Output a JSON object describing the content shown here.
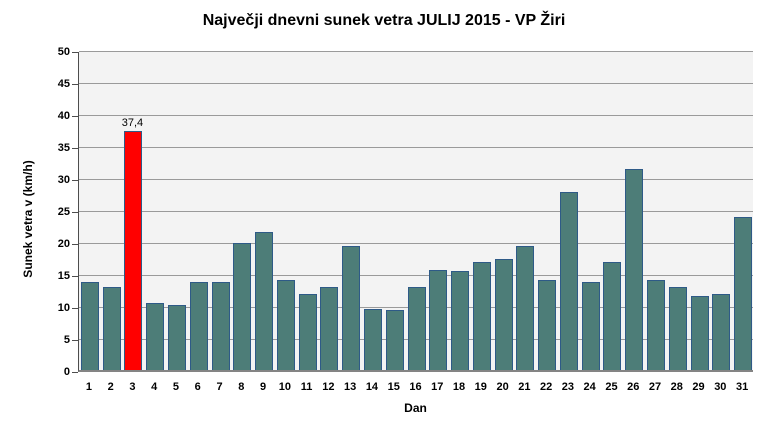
{
  "chart_data": {
    "type": "bar",
    "title": "Največji dnevni sunek vetra JULIJ 2015 - VP Žiri",
    "xlabel": "Dan",
    "ylabel": "Sunek vetra v (km/h)",
    "ylim": [
      0,
      50
    ],
    "yticks": [
      0,
      5,
      10,
      15,
      20,
      25,
      30,
      35,
      40,
      45,
      50
    ],
    "grid": true,
    "legend": false,
    "categories": [
      "1",
      "2",
      "3",
      "4",
      "5",
      "6",
      "7",
      "8",
      "9",
      "10",
      "11",
      "12",
      "13",
      "14",
      "15",
      "16",
      "17",
      "18",
      "19",
      "20",
      "21",
      "22",
      "23",
      "24",
      "25",
      "26",
      "27",
      "28",
      "29",
      "30",
      "31"
    ],
    "values": [
      13.7,
      13.0,
      37.4,
      10.5,
      10.2,
      13.8,
      13.8,
      19.9,
      21.5,
      14.1,
      11.9,
      12.9,
      19.3,
      9.6,
      9.4,
      13.0,
      15.7,
      15.4,
      16.9,
      17.3,
      19.3,
      14.1,
      27.8,
      13.7,
      16.9,
      31.4,
      14.1,
      12.9,
      11.5,
      11.9,
      23.9
    ],
    "highlight": {
      "category": "3",
      "index": 2,
      "value": 37.4,
      "data_label": "37,4",
      "color": "#FF0000"
    },
    "colors": {
      "bar_fill": "#4D7D78",
      "bar_border": "#2E5A87",
      "highlight_fill": "#FF0000",
      "plot_background": "#F3F3F3",
      "gridline": "#9A9A9A",
      "x_axis_line": "#848484",
      "y_axis_line": "#4D4D4D",
      "text": "#000000"
    }
  }
}
